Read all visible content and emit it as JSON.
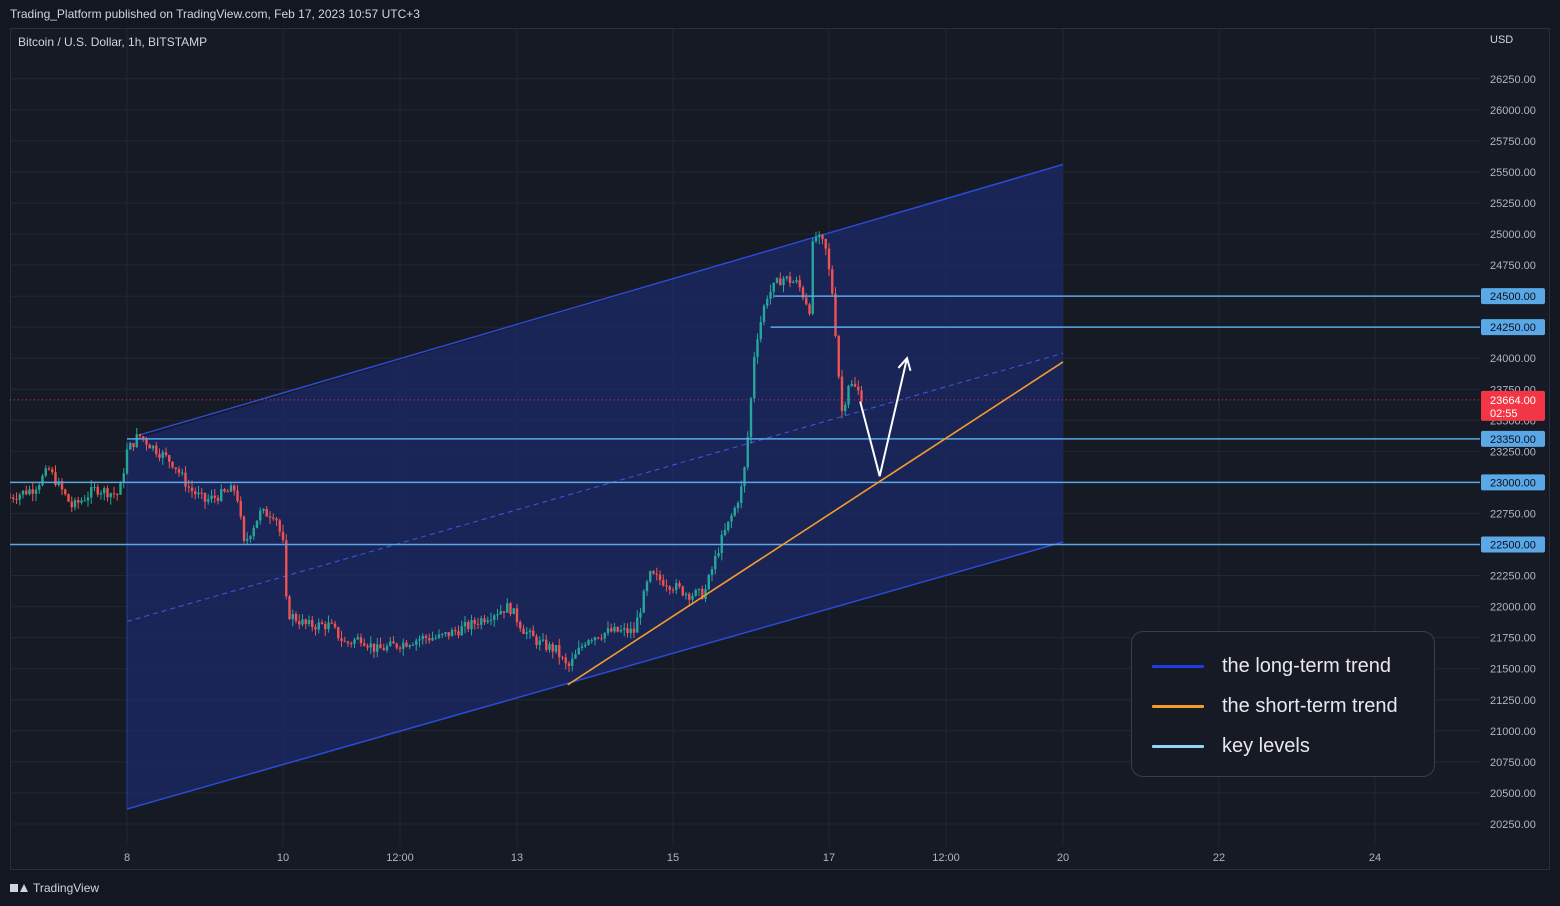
{
  "header": {
    "published_text": "Trading_Platform published on TradingView.com, Feb 17, 2023 10:57 UTC+3",
    "symbol_title": "Bitcoin / U.S. Dollar, 1h, BITSTAMP",
    "currency": "USD"
  },
  "footer": {
    "brand": "TradingView"
  },
  "chart_data": {
    "type": "candlestick",
    "title": "Bitcoin / U.S. Dollar, 1h, BITSTAMP",
    "y_unit": "USD",
    "ylim": [
      20200,
      26500
    ],
    "y_ticks": [
      20250,
      20500,
      20750,
      21000,
      21250,
      21500,
      21750,
      22000,
      22250,
      22500,
      22750,
      23000,
      23250,
      23500,
      23750,
      24000,
      24250,
      24500,
      24750,
      25000,
      25250,
      25500,
      25750,
      26000,
      26250
    ],
    "y_tick_labels": [
      "20250.00",
      "20500.00",
      "20750.00",
      "21000.00",
      "21250.00",
      "21500.00",
      "21750.00",
      "22000.00",
      "22250.00",
      "22500.00",
      "22750.00",
      "23000.00",
      "23250.00",
      "23500.00",
      "23750.00",
      "24000.00",
      "24250.00",
      "24500.00",
      "24750.00",
      "25000.00",
      "25250.00",
      "25500.00",
      "25750.00",
      "26000.00",
      "26250.00"
    ],
    "x_ticks": [
      {
        "label": "8",
        "t": 8.0
      },
      {
        "label": "10",
        "t": 10.0
      },
      {
        "label": "12:00",
        "t": 11.5
      },
      {
        "label": "13",
        "t": 13.0
      },
      {
        "label": "15",
        "t": 15.0
      },
      {
        "label": "17",
        "t": 17.0
      },
      {
        "label": "12:00",
        "t": 18.5
      },
      {
        "label": "20",
        "t": 20.0
      },
      {
        "label": "22",
        "t": 22.0
      },
      {
        "label": "24",
        "t": 24.0
      }
    ],
    "price_path": [
      [
        6.5,
        22880
      ],
      [
        6.8,
        22950
      ],
      [
        7.0,
        23100
      ],
      [
        7.3,
        22800
      ],
      [
        7.6,
        22950
      ],
      [
        7.9,
        22900
      ],
      [
        8.0,
        23250
      ],
      [
        8.15,
        23380
      ],
      [
        8.4,
        23250
      ],
      [
        8.6,
        23150
      ],
      [
        8.8,
        22950
      ],
      [
        9.0,
        22850
      ],
      [
        9.2,
        22900
      ],
      [
        9.4,
        22950
      ],
      [
        9.5,
        22500
      ],
      [
        9.7,
        22750
      ],
      [
        9.9,
        22750
      ],
      [
        10.0,
        22500
      ],
      [
        10.05,
        21950
      ],
      [
        10.3,
        21850
      ],
      [
        10.6,
        21850
      ],
      [
        10.8,
        21700
      ],
      [
        11.0,
        21750
      ],
      [
        11.2,
        21650
      ],
      [
        11.5,
        21700
      ],
      [
        11.8,
        21750
      ],
      [
        12.0,
        21750
      ],
      [
        12.4,
        21850
      ],
      [
        12.7,
        21950
      ],
      [
        12.9,
        22000
      ],
      [
        13.1,
        21800
      ],
      [
        13.3,
        21700
      ],
      [
        13.5,
        21650
      ],
      [
        13.65,
        21500
      ],
      [
        13.9,
        21750
      ],
      [
        14.2,
        21800
      ],
      [
        14.5,
        21800
      ],
      [
        14.7,
        22250
      ],
      [
        14.9,
        22200
      ],
      [
        15.2,
        22100
      ],
      [
        15.4,
        22100
      ],
      [
        15.6,
        22500
      ],
      [
        15.8,
        22800
      ],
      [
        15.9,
        23000
      ],
      [
        15.98,
        23500
      ],
      [
        16.05,
        24100
      ],
      [
        16.2,
        24500
      ],
      [
        16.4,
        24650
      ],
      [
        16.6,
        24600
      ],
      [
        16.75,
        24400
      ],
      [
        16.8,
        25000
      ],
      [
        16.95,
        24900
      ],
      [
        17.05,
        24500
      ],
      [
        17.12,
        23900
      ],
      [
        17.17,
        23550
      ],
      [
        17.25,
        23800
      ],
      [
        17.35,
        23750
      ],
      [
        17.45,
        23664
      ]
    ],
    "last_price": {
      "value": 23664,
      "label": "23664.00",
      "countdown": "02:55"
    },
    "key_levels": [
      {
        "value": 24500,
        "label": "24500.00",
        "from_t": 16.3
      },
      {
        "value": 24250,
        "label": "24250.00",
        "from_t": 16.25
      },
      {
        "value": 23350,
        "label": "23350.00",
        "from_t": 8.0
      },
      {
        "value": 23000,
        "label": "23000.00",
        "from_t": 6.5
      },
      {
        "value": 22500,
        "label": "22500.00",
        "from_t": 6.5
      }
    ],
    "long_term_channel": {
      "upper": [
        [
          8.15,
          23380
        ],
        [
          20.0,
          25560
        ]
      ],
      "lower": [
        [
          8.0,
          20370
        ],
        [
          20.0,
          22520
        ]
      ],
      "mid": [
        [
          8.0,
          21880
        ],
        [
          20.0,
          24040
        ]
      ],
      "color": "#2a4bd7"
    },
    "short_term_trend": {
      "points": [
        [
          13.65,
          21370
        ],
        [
          20.0,
          23970
        ]
      ],
      "color": "#f39c2c"
    },
    "projection": {
      "points": [
        [
          17.4,
          23650
        ],
        [
          17.65,
          23050
        ],
        [
          18.0,
          24000
        ]
      ],
      "color": "#ffffff"
    },
    "legend": {
      "position": "bottom-right",
      "items": [
        {
          "label": "the long-term trend",
          "color": "#1f3be6"
        },
        {
          "label": "the short-term trend",
          "color": "#f39c2c"
        },
        {
          "label": "key levels",
          "color": "#8fd6f7"
        }
      ]
    },
    "colors": {
      "up": "#26a69a",
      "down": "#ef5350",
      "key_level": "#5aa9e6",
      "price_tag": "#f23645"
    }
  }
}
